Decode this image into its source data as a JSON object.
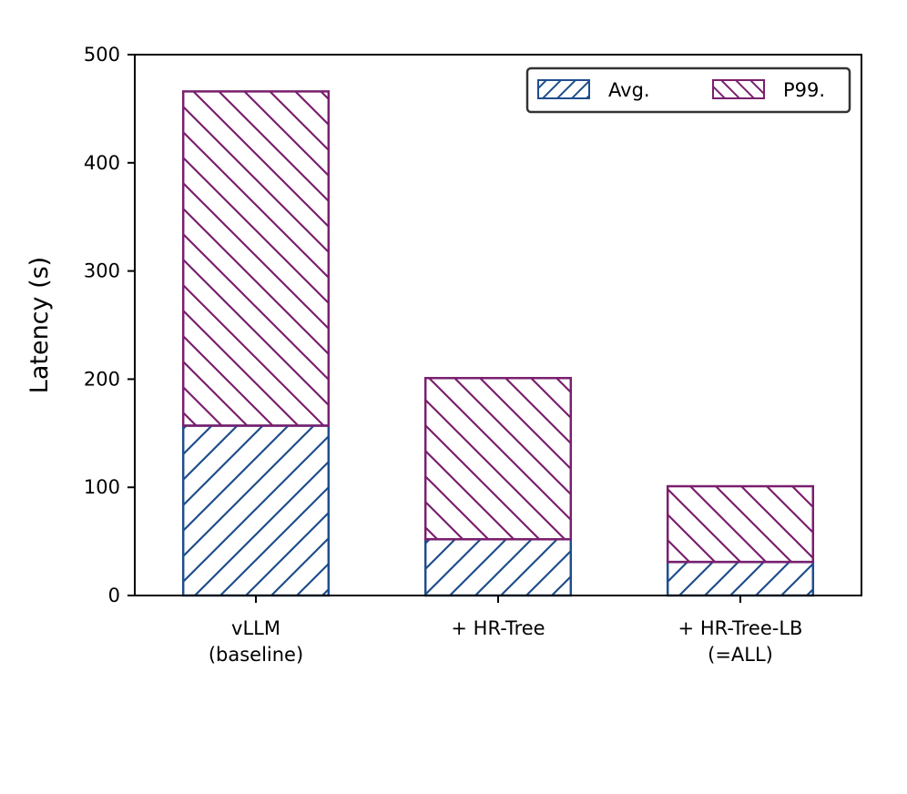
{
  "chart_data": {
    "type": "bar",
    "stacked": true,
    "categories": [
      [
        "vLLM",
        "(baseline)"
      ],
      [
        "+ HR-Tree"
      ],
      [
        "+ HR-Tree-LB",
        "(=ALL)"
      ]
    ],
    "series": [
      {
        "name": "Avg.",
        "values": [
          157,
          52,
          31
        ],
        "color": "#1f4e8c",
        "hatch": "forward"
      },
      {
        "name": "P99.",
        "values": [
          309,
          149,
          70
        ],
        "color": "#7a1f6e",
        "hatch": "back"
      }
    ],
    "title": "",
    "xlabel": "",
    "ylabel": "Latency (s)",
    "ylim": [
      0,
      500
    ],
    "yticks": [
      0,
      100,
      200,
      300,
      400,
      500
    ],
    "grid": false,
    "legend_position": "top-right"
  }
}
